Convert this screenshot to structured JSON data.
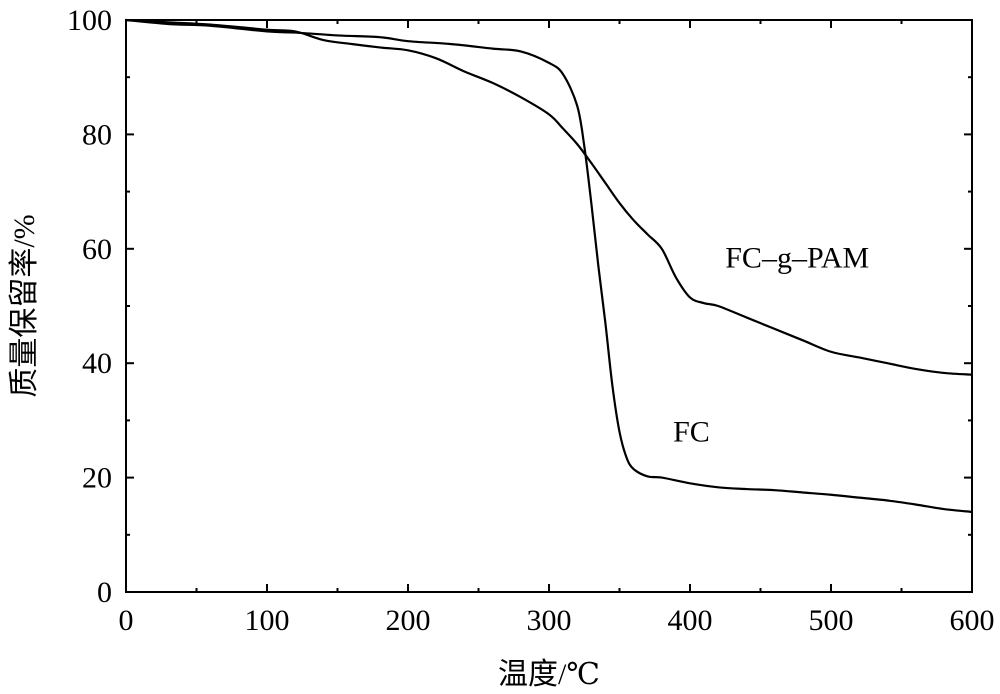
{
  "chart_data": {
    "type": "line",
    "xlabel": "温度/℃",
    "ylabel": "质量保留率/%",
    "xlim": [
      0,
      600
    ],
    "ylim": [
      0,
      100
    ],
    "xticks": [
      0,
      100,
      200,
      300,
      400,
      500,
      600
    ],
    "yticks": [
      0,
      20,
      40,
      60,
      80,
      100
    ],
    "grid": false,
    "series": [
      {
        "name": "FC–g–PAM",
        "label_at": [
          425,
          56.7
        ],
        "x": [
          0,
          30,
          60,
          100,
          120,
          140,
          160,
          180,
          200,
          220,
          240,
          260,
          280,
          300,
          310,
          320,
          330,
          340,
          350,
          360,
          370,
          380,
          390,
          400,
          410,
          420,
          440,
          460,
          480,
          500,
          520,
          540,
          560,
          580,
          600
        ],
        "y": [
          100,
          99.6,
          99.2,
          98.3,
          98.0,
          96.5,
          95.8,
          95.2,
          94.7,
          93.3,
          91.0,
          89.0,
          86.5,
          83.5,
          81.0,
          78.3,
          75.0,
          71.5,
          68.0,
          65.0,
          62.5,
          60.0,
          55.0,
          51.5,
          50.5,
          50.0,
          48.0,
          46.0,
          44.0,
          42.0,
          41.0,
          40.0,
          39.0,
          38.3,
          38.0
        ]
      },
      {
        "name": "FC",
        "label_at": [
          388,
          26.3
        ],
        "x": [
          0,
          30,
          60,
          100,
          120,
          150,
          180,
          200,
          230,
          260,
          280,
          300,
          310,
          320,
          325,
          330,
          335,
          340,
          345,
          350,
          355,
          360,
          370,
          380,
          400,
          420,
          440,
          460,
          480,
          500,
          520,
          540,
          560,
          580,
          600
        ],
        "y": [
          100,
          99.3,
          99.0,
          98.0,
          97.8,
          97.3,
          97.0,
          96.3,
          95.8,
          95.0,
          94.5,
          92.5,
          90.5,
          85.0,
          78.0,
          68.0,
          57.0,
          47.0,
          36.0,
          28.0,
          23.5,
          21.5,
          20.2,
          20.0,
          19.0,
          18.3,
          18.0,
          17.8,
          17.4,
          17.0,
          16.5,
          16.0,
          15.3,
          14.5,
          14.0
        ]
      }
    ]
  }
}
